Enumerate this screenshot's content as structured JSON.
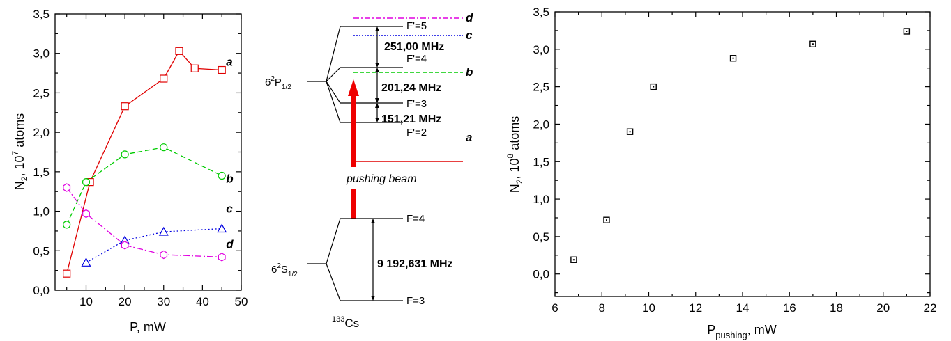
{
  "left_chart": {
    "xlabel": "P, mW",
    "ylabel_main": "N",
    "ylabel_sub": "2",
    "ylabel_rest": ", 10",
    "ylabel_exp": "7",
    "ylabel_unit": " atoms",
    "x_ticks": [
      "10",
      "20",
      "30",
      "40",
      "50"
    ],
    "y_ticks": [
      "0,0",
      "0,5",
      "1,0",
      "1,5",
      "2,0",
      "2,5",
      "3,0",
      "3,5"
    ]
  },
  "diagram": {
    "upper_state": "6",
    "upper_state_sup": "2",
    "upper_state_main": "P",
    "upper_state_sub": "1/2",
    "lower_state": "6",
    "lower_state_sup": "2",
    "lower_state_main": "S",
    "lower_state_sub": "1/2",
    "levels_upper": [
      "F'=5",
      "F'=4",
      "F'=3",
      "F'=2"
    ],
    "levels_lower": [
      "F=4",
      "F=3"
    ],
    "splittings": [
      "251,00 MHz",
      "201,24 MHz",
      "151,21 MHz",
      "9 192,631 MHz"
    ],
    "beam_label": "pushing beam",
    "isotope_sup": "133",
    "isotope": "Cs",
    "line_labels": [
      "d",
      "c",
      "b",
      "a"
    ]
  },
  "right_chart": {
    "xlabel_main": "P",
    "xlabel_sub": "pushing",
    "xlabel_unit": ", mW",
    "ylabel_main": "N",
    "ylabel_sub": "2",
    "ylabel_rest": ", 10",
    "ylabel_exp": "8",
    "ylabel_unit": " atoms",
    "x_ticks": [
      "6",
      "8",
      "10",
      "12",
      "14",
      "16",
      "18",
      "20",
      "22"
    ],
    "y_ticks": [
      "0,0",
      "0,5",
      "1,0",
      "1,5",
      "2,0",
      "2,5",
      "3,0",
      "3,5"
    ]
  },
  "chart_data": [
    {
      "type": "line",
      "xlabel": "P, mW",
      "ylabel": "N2, 10^7 atoms",
      "xlim": [
        2,
        50
      ],
      "ylim": [
        0,
        3.5
      ],
      "grid": false,
      "series": [
        {
          "name": "a",
          "color": "#e00000",
          "marker": "square",
          "dash": "solid",
          "x": [
            5,
            11,
            20,
            30,
            34,
            38,
            45
          ],
          "y": [
            0.21,
            1.37,
            2.33,
            2.68,
            3.03,
            2.81,
            2.79
          ]
        },
        {
          "name": "b",
          "color": "#00cc00",
          "marker": "circle",
          "dash": "dashed",
          "x": [
            5,
            10,
            20,
            30,
            45
          ],
          "y": [
            0.83,
            1.37,
            1.72,
            1.81,
            1.45
          ]
        },
        {
          "name": "c",
          "color": "#0000e0",
          "marker": "triangle",
          "dash": "dotted",
          "x": [
            10,
            20,
            30,
            45
          ],
          "y": [
            0.35,
            0.63,
            0.74,
            0.78
          ]
        },
        {
          "name": "d",
          "color": "#e000e0",
          "marker": "hexagon",
          "dash": "dashdot",
          "x": [
            5,
            10,
            20,
            30,
            45
          ],
          "y": [
            1.3,
            0.97,
            0.57,
            0.45,
            0.42
          ]
        }
      ]
    },
    {
      "type": "scatter",
      "xlabel": "Ppushing, mW",
      "ylabel": "N2, 10^8 atoms",
      "xlim": [
        6,
        22
      ],
      "ylim": [
        -0.3,
        3.5
      ],
      "grid": false,
      "series": [
        {
          "color": "#000000",
          "marker": "square-dot",
          "x": [
            6.8,
            8.2,
            9.2,
            10.2,
            13.6,
            17.0,
            21.0
          ],
          "y": [
            0.19,
            0.72,
            1.9,
            2.5,
            2.88,
            3.07,
            3.24
          ]
        }
      ]
    }
  ]
}
